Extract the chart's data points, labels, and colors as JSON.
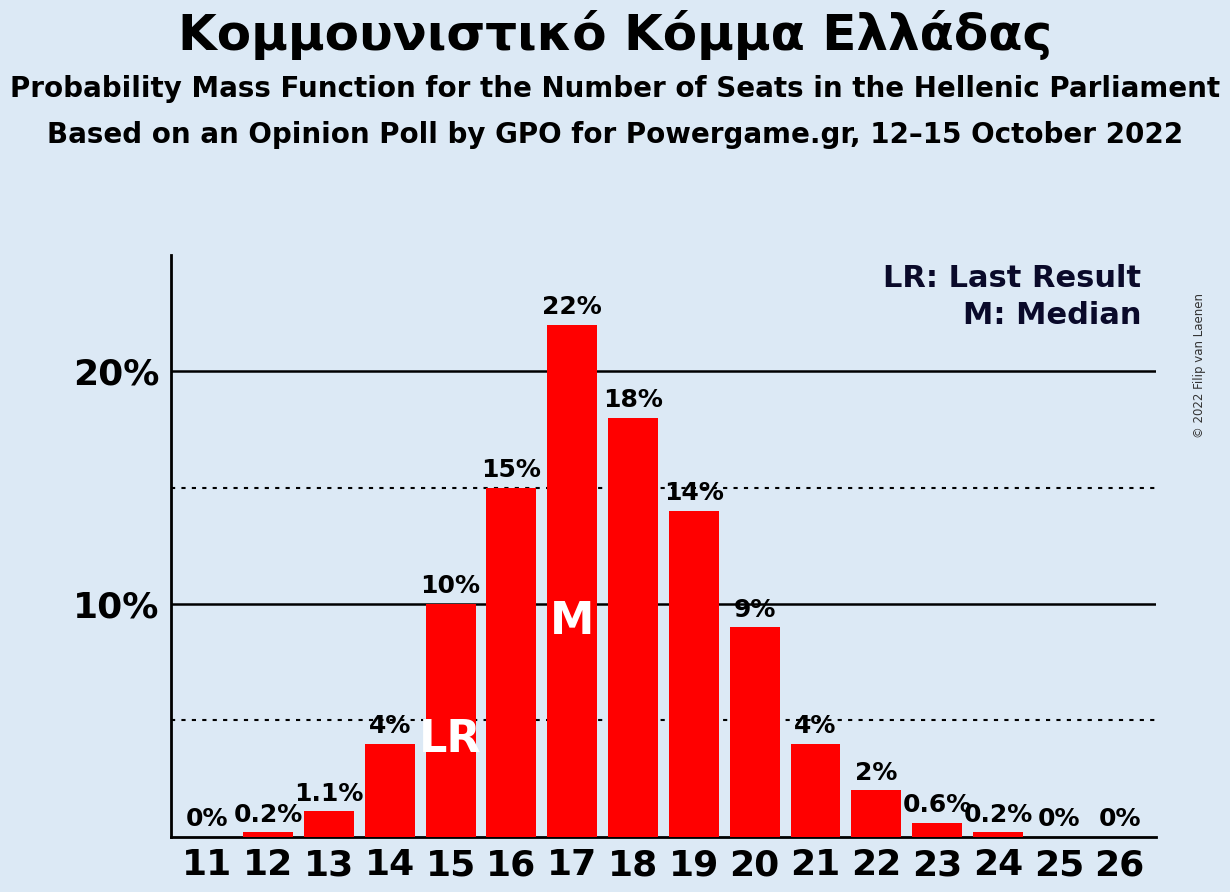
{
  "title": "Κομμουνιστικό Κόμμα Ελλάδας",
  "subtitle1": "Probability Mass Function for the Number of Seats in the Hellenic Parliament",
  "subtitle2": "Based on an Opinion Poll by GPO for Powergame.gr, 12–15 October 2022",
  "copyright": "© 2022 Filip van Laenen",
  "legend_lr": "LR: Last Result",
  "legend_m": "M: Median",
  "seats": [
    11,
    12,
    13,
    14,
    15,
    16,
    17,
    18,
    19,
    20,
    21,
    22,
    23,
    24,
    25,
    26
  ],
  "probabilities": [
    0.0,
    0.2,
    1.1,
    4.0,
    10.0,
    15.0,
    22.0,
    18.0,
    14.0,
    9.0,
    4.0,
    2.0,
    0.6,
    0.2,
    0.0,
    0.0
  ],
  "bar_labels": [
    "0%",
    "0.2%",
    "1.1%",
    "4%",
    "10%",
    "15%",
    "22%",
    "18%",
    "14%",
    "9%",
    "4%",
    "2%",
    "0.6%",
    "0.2%",
    "0%",
    "0%"
  ],
  "bar_color": "#ff0000",
  "background_color": "#dce9f5",
  "lr_seat": 15,
  "median_seat": 17,
  "dotted_lines": [
    5.0,
    15.0
  ],
  "solid_lines": [
    10.0,
    20.0
  ],
  "ylim": [
    0,
    25
  ],
  "title_fontsize": 36,
  "subtitle_fontsize": 20,
  "axis_fontsize": 26,
  "bar_label_fontsize": 18,
  "lr_m_fontsize": 32,
  "legend_fontsize": 22
}
